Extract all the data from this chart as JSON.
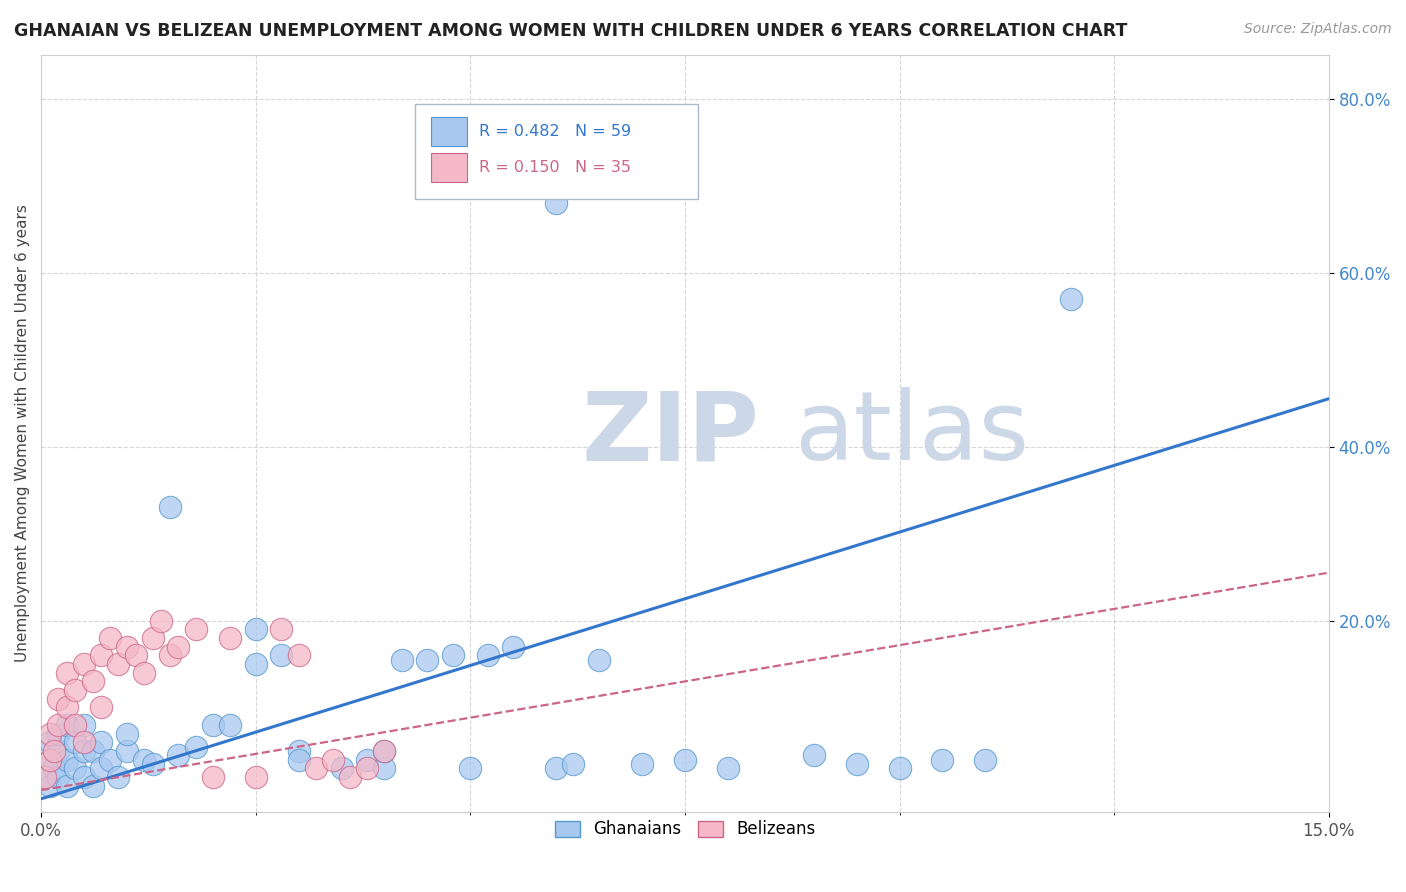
{
  "title": "GHANAIAN VS BELIZEAN UNEMPLOYMENT AMONG WOMEN WITH CHILDREN UNDER 6 YEARS CORRELATION CHART",
  "source": "Source: ZipAtlas.com",
  "ylabel": "Unemployment Among Women with Children Under 6 years",
  "xlim": [
    0.0,
    0.15
  ],
  "ylim": [
    -0.02,
    0.85
  ],
  "yticks": [
    0.2,
    0.4,
    0.6,
    0.8
  ],
  "ytick_labels": [
    "20.0%",
    "40.0%",
    "60.0%",
    "80.0%"
  ],
  "xticks": [
    0.0,
    0.15
  ],
  "xtick_labels": [
    "0.0%",
    "15.0%"
  ],
  "ghanaian_color": "#a8c8f0",
  "ghanaian_edge": "#5599cc",
  "belizean_color": "#f4b8c8",
  "belizean_edge": "#cc6688",
  "trend_ghanaian_color": "#3377cc",
  "trend_belizean_color": "#cc6688",
  "watermark_color": "#ccd8e8",
  "R_ghanaian": 0.482,
  "N_ghanaian": 59,
  "R_belizean": 0.15,
  "N_belizean": 35,
  "gh_trend_x0": 0.0,
  "gh_trend_y0": -0.005,
  "gh_trend_x1": 0.15,
  "gh_trend_y1": 0.455,
  "bel_trend_x0": 0.0,
  "bel_trend_y0": 0.005,
  "bel_trend_x1": 0.15,
  "bel_trend_y1": 0.255,
  "ghanaian_x": [
    0.0005,
    0.001,
    0.001,
    0.001,
    0.0015,
    0.002,
    0.002,
    0.002,
    0.003,
    0.003,
    0.003,
    0.004,
    0.004,
    0.005,
    0.005,
    0.005,
    0.006,
    0.006,
    0.007,
    0.007,
    0.008,
    0.009,
    0.01,
    0.01,
    0.012,
    0.013,
    0.015,
    0.016,
    0.018,
    0.02,
    0.022,
    0.025,
    0.025,
    0.028,
    0.03,
    0.03,
    0.035,
    0.038,
    0.04,
    0.04,
    0.042,
    0.045,
    0.048,
    0.05,
    0.052,
    0.055,
    0.06,
    0.06,
    0.062,
    0.065,
    0.07,
    0.075,
    0.08,
    0.09,
    0.095,
    0.1,
    0.105,
    0.11,
    0.12
  ],
  "ghanaian_y": [
    0.02,
    0.01,
    0.04,
    0.06,
    0.03,
    0.02,
    0.05,
    0.07,
    0.01,
    0.04,
    0.08,
    0.03,
    0.06,
    0.02,
    0.05,
    0.08,
    0.01,
    0.05,
    0.03,
    0.06,
    0.04,
    0.02,
    0.05,
    0.07,
    0.04,
    0.035,
    0.33,
    0.045,
    0.055,
    0.08,
    0.08,
    0.15,
    0.19,
    0.16,
    0.05,
    0.04,
    0.03,
    0.04,
    0.03,
    0.05,
    0.155,
    0.155,
    0.16,
    0.03,
    0.16,
    0.17,
    0.68,
    0.03,
    0.035,
    0.155,
    0.035,
    0.04,
    0.03,
    0.045,
    0.035,
    0.03,
    0.04,
    0.04,
    0.57
  ],
  "belizean_x": [
    0.0005,
    0.001,
    0.001,
    0.0015,
    0.002,
    0.002,
    0.003,
    0.003,
    0.004,
    0.004,
    0.005,
    0.005,
    0.006,
    0.007,
    0.007,
    0.008,
    0.009,
    0.01,
    0.011,
    0.012,
    0.013,
    0.014,
    0.015,
    0.016,
    0.018,
    0.02,
    0.022,
    0.025,
    0.028,
    0.03,
    0.032,
    0.034,
    0.036,
    0.038,
    0.04
  ],
  "belizean_y": [
    0.02,
    0.04,
    0.07,
    0.05,
    0.08,
    0.11,
    0.1,
    0.14,
    0.08,
    0.12,
    0.15,
    0.06,
    0.13,
    0.16,
    0.1,
    0.18,
    0.15,
    0.17,
    0.16,
    0.14,
    0.18,
    0.2,
    0.16,
    0.17,
    0.19,
    0.02,
    0.18,
    0.02,
    0.19,
    0.16,
    0.03,
    0.04,
    0.02,
    0.03,
    0.05
  ]
}
